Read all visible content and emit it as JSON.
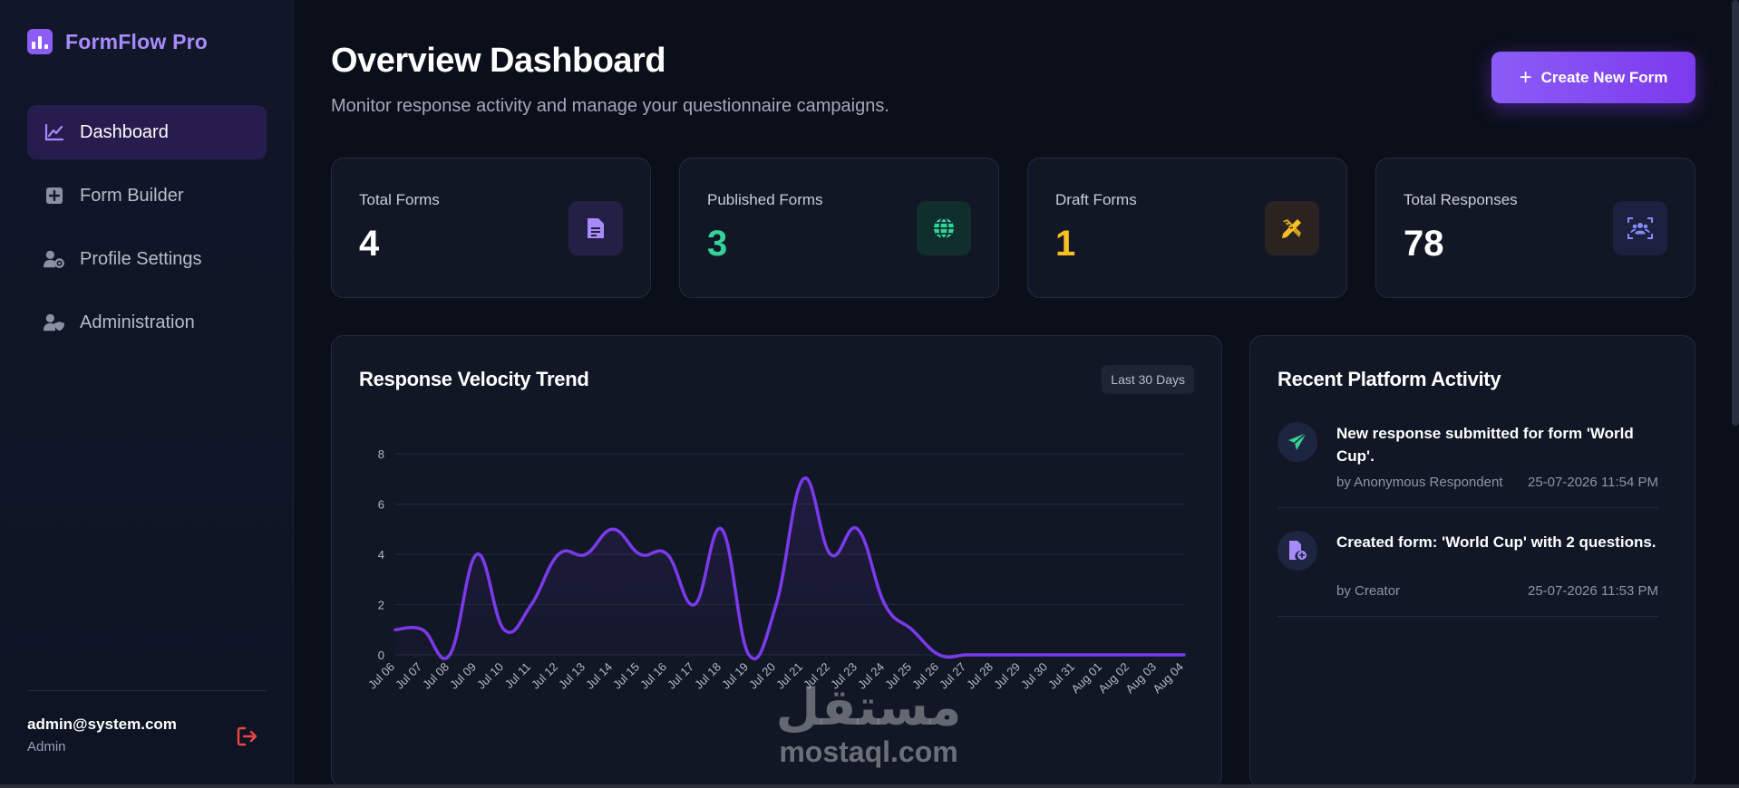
{
  "app": {
    "name": "FormFlow Pro"
  },
  "sidebar": {
    "items": [
      {
        "label": "Dashboard",
        "icon": "chart-line-icon",
        "active": true
      },
      {
        "label": "Form Builder",
        "icon": "plus-square-icon",
        "active": false
      },
      {
        "label": "Profile Settings",
        "icon": "user-gear-icon",
        "active": false
      },
      {
        "label": "Administration",
        "icon": "user-shield-icon",
        "active": false
      }
    ],
    "user": {
      "email": "admin@system.com",
      "role": "Admin"
    }
  },
  "header": {
    "title": "Overview Dashboard",
    "subtitle": "Monitor response activity and manage your questionnaire campaigns.",
    "create_label": "Create New Form"
  },
  "stats": [
    {
      "label": "Total Forms",
      "value": "4",
      "color": "#ffffff",
      "icon": "document-icon",
      "icon_color": "#a78bfa",
      "icon_bg": "#231f45"
    },
    {
      "label": "Published Forms",
      "value": "3",
      "color": "#34d399",
      "icon": "globe-icon",
      "icon_color": "#34d399",
      "icon_bg": "#0f2e2c"
    },
    {
      "label": "Draft Forms",
      "value": "1",
      "color": "#fbbf24",
      "icon": "pencil-ruler-icon",
      "icon_color": "#fbbf24",
      "icon_bg": "#2a2320"
    },
    {
      "label": "Total Responses",
      "value": "78",
      "color": "#ffffff",
      "icon": "users-icon",
      "icon_color": "#818cf8",
      "icon_bg": "#1e2040"
    }
  ],
  "chart": {
    "title": "Response Velocity Trend",
    "range_label": "Last 30 Days"
  },
  "chart_data": {
    "type": "line",
    "categories": [
      "Jul 06",
      "Jul 07",
      "Jul 08",
      "Jul 09",
      "Jul 10",
      "Jul 11",
      "Jul 12",
      "Jul 13",
      "Jul 14",
      "Jul 15",
      "Jul 16",
      "Jul 17",
      "Jul 18",
      "Jul 19",
      "Jul 20",
      "Jul 21",
      "Jul 22",
      "Jul 23",
      "Jul 24",
      "Jul 25",
      "Jul 26",
      "Jul 27",
      "Jul 28",
      "Jul 29",
      "Jul 30",
      "Jul 31",
      "Aug 01",
      "Aug 02",
      "Aug 03",
      "Aug 04"
    ],
    "values": [
      1,
      1,
      0,
      4,
      1,
      2,
      4,
      4,
      5,
      4,
      4,
      2,
      5,
      0,
      2,
      7,
      4,
      5,
      2,
      1,
      0,
      0,
      0,
      0,
      0,
      0,
      0,
      0,
      0,
      0
    ],
    "yticks": [
      0,
      2,
      4,
      6,
      8
    ],
    "ylim": [
      0,
      8
    ],
    "line_color": "#7c3aed",
    "grid": true
  },
  "activity": {
    "title": "Recent Platform Activity",
    "items": [
      {
        "text": "New response submitted for form 'World Cup'.",
        "by": "by Anonymous Respondent",
        "time": "25-07-2026 11:54 PM",
        "icon": "paper-plane-icon",
        "icon_color": "#34d399"
      },
      {
        "text": "Created form: 'World Cup' with 2 questions.",
        "by": "by Creator",
        "time": "25-07-2026 11:53 PM",
        "icon": "file-plus-icon",
        "icon_color": "#a78bfa"
      }
    ]
  },
  "watermark": {
    "arabic": "مستقل",
    "latin": "mostaql.com"
  }
}
